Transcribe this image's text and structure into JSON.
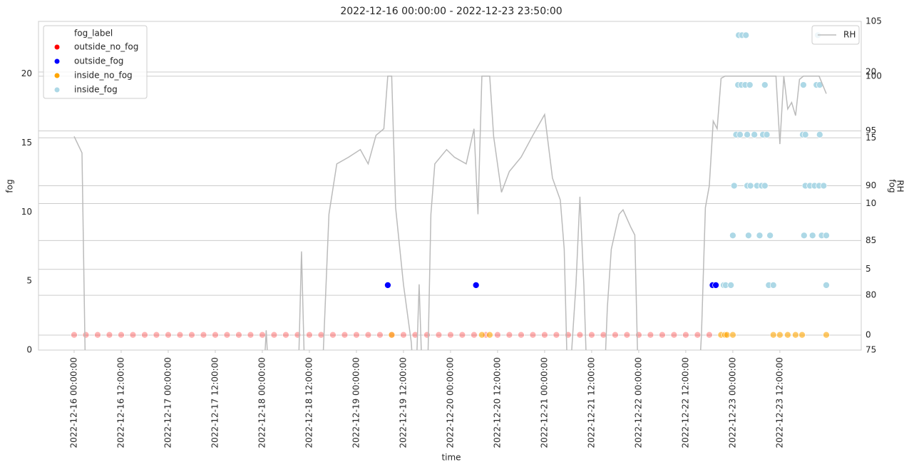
{
  "chart_data": {
    "type": "scatter",
    "title": "2022-12-16 00:00:00 - 2022-12-23 23:50:00",
    "x_label": "time",
    "y_label": "fog",
    "y2_label": "RH",
    "y3_label": "fog",
    "legend_title": "fog_label",
    "xlim": [
      "2022-12-15 14:55",
      "2022-12-24 08:45"
    ],
    "xticks": [
      "2022-12-16 00:00:00",
      "2022-12-16 12:00:00",
      "2022-12-17 00:00:00",
      "2022-12-17 12:00:00",
      "2022-12-18 00:00:00",
      "2022-12-18 12:00:00",
      "2022-12-19 00:00:00",
      "2022-12-19 12:00:00",
      "2022-12-20 00:00:00",
      "2022-12-20 12:00:00",
      "2022-12-21 00:00:00",
      "2022-12-21 12:00:00",
      "2022-12-22 00:00:00",
      "2022-12-22 12:00:00",
      "2022-12-23 00:00:00",
      "2022-12-23 12:00:00"
    ],
    "ylim": [
      0,
      23.8
    ],
    "yticks": [
      0,
      5,
      10,
      15,
      20
    ],
    "y2lim": [
      75,
      105
    ],
    "y2ticks": [
      75,
      80,
      85,
      90,
      95,
      100,
      105
    ],
    "y3lim": [
      -1.14,
      23.85
    ],
    "y3ticks": [
      0,
      5,
      10,
      15,
      20
    ],
    "grid_axes": [
      "y2",
      "y3"
    ],
    "series": [
      {
        "name": "outside_no_fog",
        "color": "#ff0000",
        "alpha": 0.3,
        "x": [
          "2022-12-16 00:00",
          "2022-12-16 03:00",
          "2022-12-16 06:00",
          "2022-12-16 09:00",
          "2022-12-16 12:00",
          "2022-12-16 15:00",
          "2022-12-16 18:00",
          "2022-12-16 21:00",
          "2022-12-17 00:00",
          "2022-12-17 03:00",
          "2022-12-17 06:00",
          "2022-12-17 09:00",
          "2022-12-17 12:00",
          "2022-12-17 15:00",
          "2022-12-17 18:00",
          "2022-12-17 21:00",
          "2022-12-18 00:00",
          "2022-12-18 03:00",
          "2022-12-18 06:00",
          "2022-12-18 09:00",
          "2022-12-18 12:00",
          "2022-12-18 15:00",
          "2022-12-18 18:00",
          "2022-12-18 21:00",
          "2022-12-19 00:00",
          "2022-12-19 03:00",
          "2022-12-19 06:00",
          "2022-12-19 09:00",
          "2022-12-19 12:00",
          "2022-12-19 15:00",
          "2022-12-19 18:00",
          "2022-12-19 21:00",
          "2022-12-20 00:00",
          "2022-12-20 03:00",
          "2022-12-20 06:00",
          "2022-12-20 09:00",
          "2022-12-20 12:00",
          "2022-12-20 15:00",
          "2022-12-20 18:00",
          "2022-12-20 21:00",
          "2022-12-21 00:00",
          "2022-12-21 03:00",
          "2022-12-21 06:00",
          "2022-12-21 09:00",
          "2022-12-21 12:00",
          "2022-12-21 15:00",
          "2022-12-21 18:00",
          "2022-12-21 21:00",
          "2022-12-22 00:00",
          "2022-12-22 03:00",
          "2022-12-22 06:00",
          "2022-12-22 09:00",
          "2022-12-22 12:00",
          "2022-12-22 15:00",
          "2022-12-22 18:00"
        ],
        "values": [
          1.1,
          1.1,
          1.1,
          1.1,
          1.1,
          1.1,
          1.1,
          1.1,
          1.1,
          1.1,
          1.1,
          1.1,
          1.1,
          1.1,
          1.1,
          1.1,
          1.1,
          1.1,
          1.1,
          1.1,
          1.1,
          1.1,
          1.1,
          1.1,
          1.1,
          1.1,
          1.1,
          1.1,
          1.1,
          1.1,
          1.1,
          1.1,
          1.1,
          1.1,
          1.1,
          1.1,
          1.1,
          1.1,
          1.1,
          1.1,
          1.1,
          1.1,
          1.1,
          1.1,
          1.1,
          1.1,
          1.1,
          1.1,
          1.1,
          1.1,
          1.1,
          1.1,
          1.1,
          1.1,
          1.1
        ]
      },
      {
        "name": "outside_fog",
        "color": "#0000ff",
        "alpha": 1,
        "x": [
          "2022-12-19 08:00",
          "2022-12-20 06:30",
          "2022-12-22 18:50",
          "2022-12-22 19:40"
        ],
        "values": [
          4.7,
          4.7,
          4.7,
          4.7
        ]
      },
      {
        "name": "inside_no_fog",
        "color": "#ffa500",
        "alpha": 0.6,
        "x": [
          "2022-12-19 09:00",
          "2022-12-20 08:00",
          "2022-12-20 10:00",
          "2022-12-22 21:00",
          "2022-12-22 22:00",
          "2022-12-22 22:30",
          "2022-12-23 00:00",
          "2022-12-23 10:20",
          "2022-12-23 12:00",
          "2022-12-23 14:00",
          "2022-12-23 16:00",
          "2022-12-23 17:40",
          "2022-12-23 23:50"
        ],
        "values": [
          1.1,
          1.1,
          1.1,
          1.1,
          1.1,
          1.1,
          1.1,
          1.1,
          1.1,
          1.1,
          1.1,
          1.1,
          1.1
        ]
      },
      {
        "name": "inside_fog",
        "color": "#add8e6",
        "alpha": 1,
        "x": [
          "2022-12-22 21:40",
          "2022-12-22 22:10",
          "2022-12-22 23:30",
          "2022-12-23 00:00",
          "2022-12-23 00:20",
          "2022-12-23 00:50",
          "2022-12-23 01:20",
          "2022-12-23 01:30",
          "2022-12-23 01:50",
          "2022-12-23 02:10",
          "2022-12-23 02:20",
          "2022-12-23 03:10",
          "2022-12-23 03:20",
          "2022-12-23 03:40",
          "2022-12-23 03:40",
          "2022-12-23 04:00",
          "2022-12-23 04:20",
          "2022-12-23 04:30",
          "2022-12-23 05:30",
          "2022-12-23 06:10",
          "2022-12-23 06:50",
          "2022-12-23 07:20",
          "2022-12-23 07:40",
          "2022-12-23 08:10",
          "2022-12-23 08:10",
          "2022-12-23 08:40",
          "2022-12-23 09:10",
          "2022-12-23 09:30",
          "2022-12-23 10:20",
          "2022-12-23 17:50",
          "2022-12-23 18:00",
          "2022-12-23 18:10",
          "2022-12-23 18:30",
          "2022-12-23 18:30",
          "2022-12-23 19:40",
          "2022-12-23 20:20",
          "2022-12-23 20:50",
          "2022-12-23 21:20",
          "2022-12-23 21:40",
          "2022-12-23 22:00",
          "2022-12-23 22:10",
          "2022-12-23 22:10",
          "2022-12-23 22:40",
          "2022-12-23 23:10",
          "2022-12-23 23:50",
          "2022-12-23 23:50"
        ],
        "values": [
          4.7,
          4.7,
          4.7,
          8.3,
          11.9,
          15.6,
          19.2,
          22.8,
          15.6,
          19.2,
          22.8,
          19.2,
          22.8,
          15.6,
          11.9,
          8.3,
          19.2,
          11.9,
          15.6,
          11.9,
          8.3,
          11.9,
          15.6,
          19.2,
          11.9,
          15.6,
          4.7,
          8.3,
          4.7,
          15.6,
          19.2,
          8.3,
          15.6,
          11.9,
          11.9,
          8.3,
          11.9,
          19.2,
          22.8,
          11.9,
          19.2,
          15.6,
          8.3,
          11.9,
          8.3,
          4.7
        ]
      },
      {
        "name": "RH",
        "color": "#bbbbbb",
        "axis": "y2",
        "kind": "line",
        "x": [
          "2022-12-16 00:00",
          "2022-12-16 02:00",
          "2022-12-16 03:00",
          "2022-12-18 00:00",
          "2022-12-18 01:00",
          "2022-12-18 02:00",
          "2022-12-18 09:00",
          "2022-12-18 10:00",
          "2022-12-18 11:00",
          "2022-12-18 15:00",
          "2022-12-18 17:00",
          "2022-12-18 19:00",
          "2022-12-18 22:00",
          "2022-12-19 01:00",
          "2022-12-19 03:00",
          "2022-12-19 05:00",
          "2022-12-19 07:00",
          "2022-12-19 08:00",
          "2022-12-19 09:00",
          "2022-12-19 10:00",
          "2022-12-19 12:00",
          "2022-12-19 14:00",
          "2022-12-19 15:00",
          "2022-12-19 16:00",
          "2022-12-19 17:00",
          "2022-12-19 18:00",
          "2022-12-19 19:00",
          "2022-12-19 20:00",
          "2022-12-19 23:00",
          "2022-12-20 01:00",
          "2022-12-20 04:00",
          "2022-12-20 06:00",
          "2022-12-20 07:00",
          "2022-12-20 08:00",
          "2022-12-20 10:00",
          "2022-12-20 11:00",
          "2022-12-20 13:00",
          "2022-12-20 15:00",
          "2022-12-20 18:00",
          "2022-12-20 21:00",
          "2022-12-21 00:00",
          "2022-12-21 02:00",
          "2022-12-21 04:00",
          "2022-12-21 05:00",
          "2022-12-21 06:00",
          "2022-12-21 08:00",
          "2022-12-21 09:00",
          "2022-12-21 10:00",
          "2022-12-21 11:00",
          "2022-12-21 15:00",
          "2022-12-21 16:00",
          "2022-12-21 17:00",
          "2022-12-21 19:00",
          "2022-12-21 20:00",
          "2022-12-21 22:00",
          "2022-12-21 23:00",
          "2022-12-22 00:00",
          "2022-12-22 15:00",
          "2022-12-22 16:00",
          "2022-12-22 17:00",
          "2022-12-22 18:00",
          "2022-12-22 19:00",
          "2022-12-22 20:00",
          "2022-12-22 21:00",
          "2022-12-22 22:00",
          "2022-12-23 11:00",
          "2022-12-23 12:00",
          "2022-12-23 13:00",
          "2022-12-23 14:00",
          "2022-12-23 15:00",
          "2022-12-23 16:00",
          "2022-12-23 17:00",
          "2022-12-23 18:00",
          "2022-12-23 22:00",
          "2022-12-23 23:50"
        ],
        "values": [
          94.5,
          93.0,
          70,
          70,
          76.8,
          70,
          70,
          84.0,
          70,
          70,
          87.4,
          92.0,
          92.6,
          93.3,
          92.0,
          94.6,
          95.2,
          100,
          100,
          88.0,
          81.0,
          75.7,
          70,
          81.0,
          70,
          70,
          87.4,
          92.0,
          93.3,
          92.6,
          92.0,
          95.2,
          87.4,
          100,
          100,
          94.5,
          89.4,
          91.3,
          92.6,
          94.6,
          96.5,
          90.7,
          88.7,
          84.2,
          70,
          81.0,
          89.0,
          81.0,
          70,
          70,
          78.9,
          84.2,
          87.4,
          87.8,
          86.2,
          85.5,
          70,
          70,
          76.4,
          88.0,
          90.0,
          95.9,
          95.2,
          99.8,
          100,
          100,
          93.8,
          100,
          97.0,
          97.6,
          96.4,
          99.7,
          100,
          100,
          98.4
        ]
      }
    ]
  }
}
